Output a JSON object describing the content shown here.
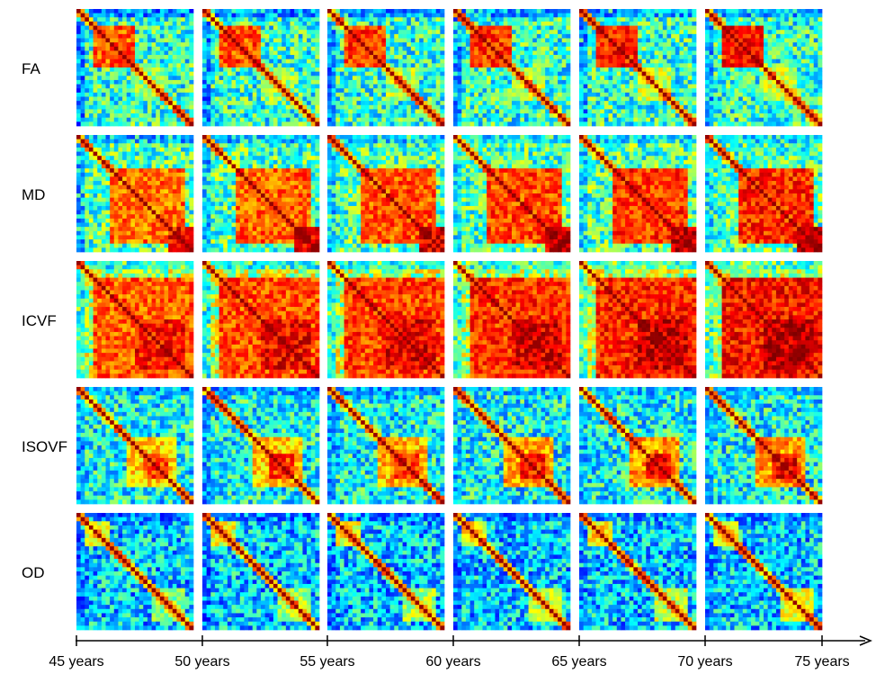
{
  "chart_data": {
    "type": "heatmap",
    "rows": [
      "FA",
      "MD",
      "ICVF",
      "ISOVF",
      "OD"
    ],
    "x_ticks": [
      "45 years",
      "50 years",
      "55 years",
      "60 years",
      "65 years",
      "70 years",
      "75 years"
    ],
    "colormap": "jet",
    "colors": {
      "jet": [
        "#00008f",
        "#0000ff",
        "#0080ff",
        "#00ffff",
        "#80ff80",
        "#ffff00",
        "#ff8000",
        "#ff0000",
        "#800000"
      ]
    },
    "matrix_size": 28,
    "age_windows": [
      "45-50 years",
      "50-55 years",
      "55-60 years",
      "60-65 years",
      "65-70 years",
      "70-75 years"
    ],
    "block_patterns": {
      "FA": {
        "base": 0.42,
        "blocks": [
          [
            4,
            14,
            0.82
          ],
          [
            14,
            22,
            0.55
          ]
        ],
        "edge_low": 0.12
      },
      "MD": {
        "base": 0.45,
        "blocks": [
          [
            8,
            26,
            0.8
          ],
          [
            22,
            28,
            0.92
          ]
        ],
        "edge_low": 0.18
      },
      "ICVF": {
        "base": 0.55,
        "blocks": [
          [
            4,
            28,
            0.82
          ],
          [
            14,
            26,
            0.9
          ]
        ],
        "edge_low": 0.25
      },
      "ISOVF": {
        "base": 0.38,
        "blocks": [
          [
            12,
            24,
            0.7
          ],
          [
            16,
            22,
            0.85
          ]
        ],
        "edge_low": 0.15
      },
      "OD": {
        "base": 0.32,
        "blocks": [
          [
            2,
            8,
            0.62
          ],
          [
            18,
            26,
            0.55
          ]
        ],
        "edge_low": 0.1
      }
    }
  }
}
